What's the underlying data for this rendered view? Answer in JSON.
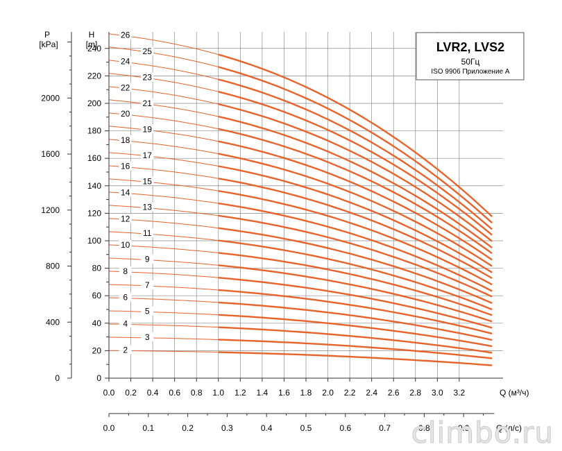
{
  "chart_data": {
    "type": "line",
    "title": "LVR2, LVS2",
    "subtitle": "50Гц",
    "note": "ISO 9906 Приложение А",
    "watermark": "climbo.ru",
    "xlabel_m3h": "Q (м³/ч)",
    "xlabel_ls": "Q (л/с)",
    "ylabel_head_symbol": "H",
    "ylabel_head_unit": "[m]",
    "ylabel_pressure_symbol": "P",
    "ylabel_pressure_unit": "[kPa]",
    "xlim": [
      0,
      3.6
    ],
    "ylim": [
      0,
      252
    ],
    "x_ticks": [
      {
        "value": 0.0,
        "label": "0.0"
      },
      {
        "value": 0.2,
        "label": "0.2"
      },
      {
        "value": 0.4,
        "label": "0.4"
      },
      {
        "value": 0.6,
        "label": "0.6"
      },
      {
        "value": 0.8,
        "label": "0.8"
      },
      {
        "value": 1.0,
        "label": "1.0"
      },
      {
        "value": 1.2,
        "label": "1.2"
      },
      {
        "value": 1.4,
        "label": "1.4"
      },
      {
        "value": 1.6,
        "label": "1.6"
      },
      {
        "value": 1.8,
        "label": "1.8"
      },
      {
        "value": 2.0,
        "label": "2.0"
      },
      {
        "value": 2.2,
        "label": "2.2"
      },
      {
        "value": 2.4,
        "label": "2.4"
      },
      {
        "value": 2.6,
        "label": "2.6"
      },
      {
        "value": 2.8,
        "label": "2.8"
      },
      {
        "value": 3.0,
        "label": "3.0"
      },
      {
        "value": 3.2,
        "label": "3.2"
      }
    ],
    "x2_ticks": [
      {
        "value": 0.0,
        "label": "0.0"
      },
      {
        "value": 0.1,
        "label": "0.1"
      },
      {
        "value": 0.2,
        "label": "0.2"
      },
      {
        "value": 0.3,
        "label": "0.3"
      },
      {
        "value": 0.4,
        "label": "0.4"
      },
      {
        "value": 0.5,
        "label": "0.5"
      },
      {
        "value": 0.6,
        "label": "0.6"
      },
      {
        "value": 0.7,
        "label": "0.7"
      },
      {
        "value": 0.8,
        "label": "0.8"
      },
      {
        "value": 0.9,
        "label": "0.9"
      }
    ],
    "head_ticks": [
      0,
      20,
      40,
      60,
      80,
      100,
      120,
      140,
      160,
      180,
      200,
      220,
      240
    ],
    "pressure_ticks": [
      0,
      400,
      800,
      1200,
      1600,
      2000
    ],
    "grid": true,
    "legend_position": "top-right",
    "stage_label_x": [
      0.15,
      0.35
    ],
    "series": [
      {
        "name": "2",
        "shutoff_head": 20.1,
        "end_head": 9.3
      },
      {
        "name": "3",
        "shutoff_head": 29.8,
        "end_head": 14.4
      },
      {
        "name": "4",
        "shutoff_head": 39.4,
        "end_head": 18.5
      },
      {
        "name": "5",
        "shutoff_head": 49.0,
        "end_head": 23.2
      },
      {
        "name": "6",
        "shutoff_head": 58.6,
        "end_head": 27.8
      },
      {
        "name": "7",
        "shutoff_head": 68.2,
        "end_head": 32.4
      },
      {
        "name": "8",
        "shutoff_head": 77.8,
        "end_head": 36.6
      },
      {
        "name": "9",
        "shutoff_head": 87.4,
        "end_head": 41.2
      },
      {
        "name": "10",
        "shutoff_head": 97.0,
        "end_head": 45.8
      },
      {
        "name": "11",
        "shutoff_head": 106.6,
        "end_head": 50.0
      },
      {
        "name": "12",
        "shutoff_head": 116.2,
        "end_head": 54.6
      },
      {
        "name": "13",
        "shutoff_head": 125.8,
        "end_head": 59.3
      },
      {
        "name": "14",
        "shutoff_head": 135.4,
        "end_head": 63.4
      },
      {
        "name": "15",
        "shutoff_head": 145.0,
        "end_head": 68.1
      },
      {
        "name": "16",
        "shutoff_head": 154.6,
        "end_head": 72.7
      },
      {
        "name": "17",
        "shutoff_head": 164.2,
        "end_head": 76.9
      },
      {
        "name": "18",
        "shutoff_head": 173.8,
        "end_head": 81.5
      },
      {
        "name": "19",
        "shutoff_head": 183.4,
        "end_head": 86.1
      },
      {
        "name": "20",
        "shutoff_head": 193.0,
        "end_head": 90.8
      },
      {
        "name": "21",
        "shutoff_head": 202.6,
        "end_head": 94.9
      },
      {
        "name": "22",
        "shutoff_head": 212.2,
        "end_head": 99.6
      },
      {
        "name": "23",
        "shutoff_head": 221.8,
        "end_head": 104.2
      },
      {
        "name": "24",
        "shutoff_head": 231.4,
        "end_head": 108.3
      },
      {
        "name": "25",
        "shutoff_head": 241.0,
        "end_head": 113.0
      },
      {
        "name": "26",
        "shutoff_head": 250.6,
        "end_head": 117.6
      }
    ],
    "curve_x_range": [
      0,
      3.5
    ],
    "operating_range_start_q": 1.0
  }
}
